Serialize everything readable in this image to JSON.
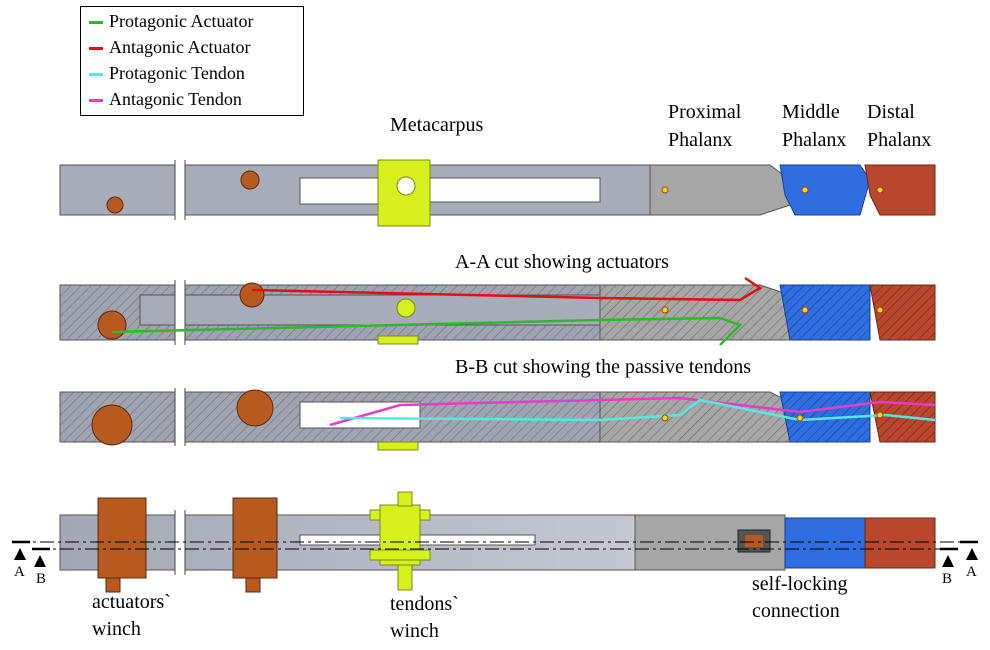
{
  "legend": {
    "items": [
      {
        "label": "Protagonic Actuator",
        "color": "#2eb82e"
      },
      {
        "label": "Antagonic Actuator",
        "color": "#e01010"
      },
      {
        "label": "Protagonic Tendon",
        "color": "#55e8e0"
      },
      {
        "label": "Antagonic Tendon",
        "color": "#e83cc8"
      }
    ]
  },
  "labels": {
    "metacarpus": "Metacarpus",
    "proximal_1": "Proximal",
    "proximal_2": "Phalanx",
    "middle_1": "Middle",
    "middle_2": "Phalanx",
    "distal_1": "Distal",
    "distal_2": "Phalanx",
    "cut_aa": "A-A cut showing actuators",
    "cut_bb": "B-B cut showing the passive tendons",
    "act_winch_1": "actuators`",
    "act_winch_2": "winch",
    "ten_winch_1": "tendons`",
    "ten_winch_2": "winch",
    "self_lock_1": "self-locking",
    "self_lock_2": "connection",
    "sec_a": "A",
    "sec_b": "B"
  },
  "colors": {
    "body_gray": "#a8acb8",
    "light_gray": "#c8ccd6",
    "proximal_gray": "#a6a6a6",
    "middle_blue": "#2e6ee0",
    "distal_red": "#b8472e",
    "winch_yellow": "#d6f01e",
    "winch_orange": "#b85a20"
  }
}
